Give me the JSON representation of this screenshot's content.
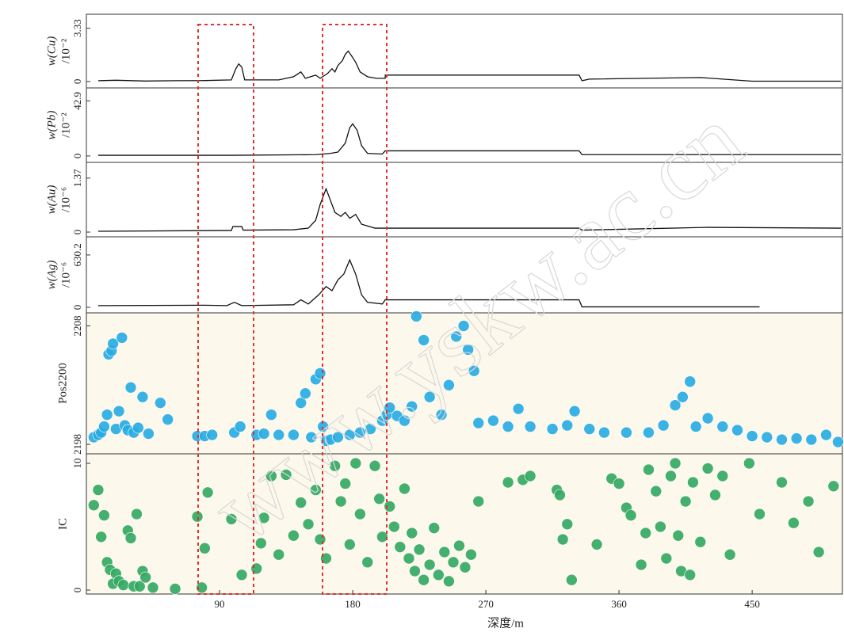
{
  "watermark": "www.yskw.ac.cn",
  "chart_data": [
    {
      "type": "line",
      "ylabel": "w(Cu)",
      "ylabel_unit": "/10⁻²",
      "color": "#111111",
      "xlim": [
        0,
        511
      ],
      "ylim": [
        -0.4,
        4.2
      ],
      "yticks": [
        0,
        3.33
      ],
      "x": [
        8,
        20,
        40,
        60,
        80,
        98,
        101,
        103,
        105,
        107,
        130,
        140,
        145,
        148,
        155,
        158,
        163,
        166,
        168,
        170,
        173,
        175,
        177,
        180,
        182,
        185,
        190,
        196,
        202,
        202,
        250,
        333,
        335,
        340,
        415,
        450,
        510
      ],
      "values": [
        0.05,
        0.08,
        0.03,
        0.05,
        0.06,
        0.1,
        0.8,
        1.1,
        0.9,
        0.1,
        0.1,
        0.3,
        0.6,
        0.2,
        0.4,
        0.2,
        0.5,
        0.8,
        0.6,
        1.0,
        1.3,
        1.7,
        1.9,
        1.5,
        1.2,
        0.6,
        0.3,
        0.2,
        0.2,
        0.4,
        0.4,
        0.4,
        0.05,
        0.15,
        0.25,
        0.02,
        0.02
      ]
    },
    {
      "type": "line",
      "ylabel": "w(Pb)",
      "ylabel_unit": "/10⁻²",
      "color": "#111111",
      "xlim": [
        0,
        511
      ],
      "ylim": [
        -5,
        53
      ],
      "yticks": [
        0,
        42.9
      ],
      "x": [
        8,
        100,
        155,
        165,
        170,
        175,
        178,
        180,
        183,
        186,
        190,
        200,
        202,
        333,
        335,
        510
      ],
      "values": [
        0.5,
        0.5,
        1,
        2,
        3,
        10,
        22,
        25,
        20,
        8,
        2,
        1.5,
        4,
        4,
        1,
        1
      ]
    },
    {
      "type": "line",
      "ylabel": "w(Au)",
      "ylabel_unit": "/10⁻⁶",
      "color": "#111111",
      "xlim": [
        0,
        511
      ],
      "ylim": [
        -0.12,
        1.77
      ],
      "yticks": [
        0,
        1.37
      ],
      "x": [
        8,
        90,
        98,
        99,
        105,
        106,
        140,
        150,
        155,
        158,
        162,
        165,
        168,
        172,
        175,
        178,
        182,
        186,
        195,
        202,
        333,
        335,
        420,
        510
      ],
      "values": [
        0.02,
        0.04,
        0.04,
        0.14,
        0.14,
        0.05,
        0.06,
        0.1,
        0.3,
        0.7,
        1.1,
        0.8,
        0.5,
        0.4,
        0.5,
        0.35,
        0.45,
        0.2,
        0.1,
        0.1,
        0.1,
        0.05,
        0.12,
        0.1
      ]
    },
    {
      "type": "line",
      "ylabel": "w(Ag)",
      "ylabel_unit": "/10⁻⁶",
      "color": "#111111",
      "xlim": [
        0,
        511
      ],
      "ylim": [
        -67,
        849
      ],
      "yticks": [
        0,
        630.2
      ],
      "x": [
        8,
        80,
        95,
        100,
        105,
        140,
        145,
        150,
        157,
        162,
        166,
        170,
        174,
        178,
        182,
        186,
        190,
        200,
        202,
        333,
        335,
        455
      ],
      "values": [
        20,
        25,
        20,
        60,
        20,
        30,
        90,
        40,
        150,
        250,
        200,
        330,
        400,
        570,
        400,
        150,
        60,
        40,
        90,
        90,
        5,
        5
      ]
    },
    {
      "type": "scatter",
      "ylabel": "Pos2200",
      "color": "#29abe2",
      "background": "#fdf8ec",
      "xlim": [
        0,
        511
      ],
      "ylim": [
        2197.2,
        2209.1
      ],
      "yticks": [
        2198,
        2208
      ],
      "x": [
        5,
        8,
        10,
        12,
        14,
        15,
        17,
        18,
        20,
        22,
        24,
        26,
        28,
        30,
        32,
        35,
        38,
        42,
        50,
        55,
        75,
        80,
        85,
        100,
        104,
        115,
        120,
        125,
        130,
        140,
        145,
        148,
        152,
        155,
        158,
        160,
        162,
        165,
        170,
        178,
        185,
        192,
        200,
        203,
        205,
        210,
        215,
        220,
        223,
        228,
        232,
        240,
        245,
        250,
        255,
        258,
        262,
        265,
        275,
        285,
        292,
        300,
        315,
        325,
        330,
        340,
        350,
        365,
        380,
        390,
        398,
        403,
        408,
        412,
        420,
        430,
        440,
        450,
        460,
        470,
        480,
        490,
        500,
        508
      ],
      "values": [
        2198.6,
        2198.8,
        2199.0,
        2199.5,
        2200.5,
        2205.6,
        2205.9,
        2206.5,
        2199.3,
        2200.8,
        2207.0,
        2199.6,
        2199.2,
        2202.8,
        2199.0,
        2199.4,
        2202.0,
        2198.9,
        2201.5,
        2200.1,
        2198.7,
        2198.7,
        2198.8,
        2199.0,
        2199.5,
        2198.8,
        2198.9,
        2200.5,
        2198.8,
        2198.8,
        2201.5,
        2202.3,
        2198.6,
        2203.5,
        2204.0,
        2199.5,
        2198.3,
        2198.4,
        2198.6,
        2198.8,
        2199.0,
        2199.3,
        2200.0,
        2200.5,
        2201.1,
        2200.4,
        2200.0,
        2201.2,
        2208.8,
        2206.8,
        2202.0,
        2200.5,
        2203.0,
        2207.1,
        2208.0,
        2206.0,
        2204.2,
        2199.8,
        2200.0,
        2199.5,
        2201.0,
        2199.5,
        2199.3,
        2199.6,
        2200.8,
        2199.3,
        2199.0,
        2199.0,
        2199.0,
        2199.6,
        2201.3,
        2202.0,
        2203.3,
        2199.5,
        2200.2,
        2199.5,
        2199.2,
        2198.7,
        2198.6,
        2198.4,
        2198.5,
        2198.4,
        2198.8,
        2198.2
      ]
    },
    {
      "type": "scatter",
      "ylabel": "IC",
      "color": "#35a862",
      "background": "#fdf8ec",
      "xlim": [
        0,
        511
      ],
      "ylim": [
        -0.31,
        10.75
      ],
      "yticks": [
        0,
        10
      ],
      "xlabel": "深度/m",
      "xticks": [
        90,
        180,
        270,
        360,
        450
      ],
      "x": [
        5,
        8,
        10,
        12,
        14,
        16,
        18,
        20,
        22,
        25,
        28,
        30,
        32,
        34,
        36,
        38,
        40,
        45,
        60,
        75,
        78,
        80,
        82,
        98,
        105,
        115,
        118,
        120,
        125,
        130,
        135,
        140,
        145,
        150,
        155,
        158,
        162,
        168,
        172,
        175,
        178,
        182,
        185,
        190,
        195,
        198,
        200,
        205,
        208,
        212,
        215,
        218,
        220,
        222,
        225,
        228,
        232,
        235,
        238,
        242,
        245,
        248,
        252,
        256,
        260,
        265,
        285,
        295,
        300,
        318,
        320,
        322,
        325,
        328,
        345,
        355,
        360,
        365,
        368,
        375,
        378,
        380,
        385,
        388,
        392,
        395,
        398,
        400,
        402,
        405,
        408,
        410,
        415,
        420,
        425,
        430,
        435,
        448,
        455,
        470,
        478,
        488,
        495,
        505
      ],
      "values": [
        6.7,
        7.9,
        4.2,
        5.9,
        2.2,
        1.6,
        0.5,
        1.3,
        0.7,
        0.4,
        4.7,
        4.1,
        0.3,
        6.0,
        0.3,
        1.5,
        1.0,
        0.2,
        0.1,
        5.8,
        0.2,
        3.3,
        7.7,
        5.6,
        1.2,
        1.7,
        3.7,
        5.7,
        9.0,
        2.8,
        9.1,
        4.3,
        6.9,
        5.2,
        7.9,
        4.0,
        2.5,
        9.8,
        7.0,
        8.4,
        3.6,
        10.0,
        6.0,
        2.2,
        9.8,
        7.2,
        4.2,
        6.6,
        5.0,
        3.4,
        8.0,
        2.5,
        4.5,
        1.5,
        3.2,
        0.8,
        2.0,
        4.9,
        1.2,
        3.0,
        0.7,
        2.2,
        3.5,
        1.8,
        2.8,
        7.0,
        8.5,
        8.7,
        9.0,
        7.9,
        7.5,
        4.0,
        5.2,
        0.8,
        3.6,
        8.8,
        8.4,
        6.5,
        5.9,
        2.0,
        4.5,
        9.5,
        7.8,
        5.0,
        2.5,
        9.0,
        10.0,
        4.3,
        1.5,
        7.0,
        1.2,
        8.5,
        3.8,
        9.6,
        7.5,
        9.0,
        2.8,
        10.0,
        6.0,
        8.5,
        5.3,
        7.0,
        3.0,
        8.2
      ]
    }
  ]
}
